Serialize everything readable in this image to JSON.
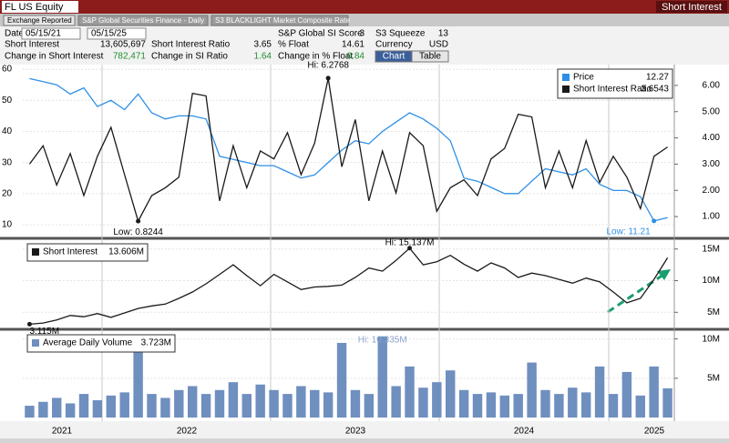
{
  "header": {
    "ticker": "FL US Equity",
    "function": "Short Interest",
    "tabs": [
      "Exchange Reported",
      "S&P Global Securities Finance - Daily",
      "S3 BLACKLIGHT Market Composite Rate"
    ],
    "date_label": "Date",
    "start_date": "05/15/21",
    "end_date": "05/15/25",
    "stats": [
      {
        "label": "S&P Global SI Score",
        "value": "3"
      },
      {
        "label": "S3 Squeeze",
        "value": "13"
      },
      {
        "label": "Short Interest",
        "value": "13,605,697"
      },
      {
        "label": "Short Interest Ratio",
        "value": "3.65"
      },
      {
        "label": "% Float",
        "value": "14.61"
      },
      {
        "label": "Currency",
        "value": "USD"
      },
      {
        "label": "Change in Short Interest",
        "value": "782,471"
      },
      {
        "label": "Change in SI Ratio",
        "value": "1.64"
      },
      {
        "label": "Change in % Float",
        "value": "0.84"
      }
    ],
    "buttons": [
      "Chart",
      "Table"
    ]
  },
  "x_axis": {
    "labels": [
      "2021",
      "2022",
      "2023",
      "2024",
      "2025"
    ]
  },
  "chart_data": [
    {
      "type": "line",
      "categories": [
        null,
        null,
        null,
        null,
        null,
        null,
        null,
        null,
        null,
        null,
        null,
        null,
        null,
        null,
        null,
        null,
        null,
        null,
        null,
        null,
        null,
        null,
        null,
        null,
        null,
        null,
        null,
        null,
        null,
        null,
        null,
        null,
        null,
        null,
        null,
        null,
        null,
        null,
        null,
        null,
        null,
        null,
        null,
        null,
        null,
        null,
        null,
        null
      ],
      "series": [
        {
          "name": "Price",
          "legend_value": "12.27",
          "color": "#2e8fe6",
          "axis": "y",
          "values": [
            57,
            56,
            55,
            52,
            54,
            48,
            50,
            47,
            52,
            46,
            44,
            45,
            45,
            44,
            32,
            31,
            30,
            29,
            29,
            27,
            25,
            26,
            30,
            34,
            37,
            36,
            40,
            43,
            46,
            44,
            41,
            37,
            25,
            24,
            22,
            20,
            20,
            24,
            28,
            27,
            26,
            28,
            23,
            21,
            21,
            19,
            11.21,
            12.27
          ]
        },
        {
          "name": "Short Interest Ratio",
          "legend_value": "3.6543",
          "color": "#1a1a1a",
          "axis": "y2",
          "values": [
            3.0,
            3.7,
            2.2,
            3.4,
            1.8,
            3.3,
            4.4,
            2.6,
            0.8244,
            1.8,
            2.1,
            2.5,
            5.7,
            5.6,
            1.6,
            3.7,
            2.1,
            3.5,
            3.2,
            4.2,
            2.6,
            3.8,
            6.2768,
            2.9,
            4.7,
            1.6,
            3.5,
            1.9,
            4.2,
            3.7,
            1.2,
            2.1,
            2.4,
            1.8,
            3.2,
            3.6,
            4.9,
            4.8,
            2.1,
            3.5,
            2.1,
            3.9,
            2.3,
            3.3,
            2.5,
            1.3,
            3.3,
            3.6543
          ]
        }
      ],
      "ylim": [
        6.2,
        61.2
      ],
      "yticks": [
        10,
        20,
        30,
        40,
        50,
        60
      ],
      "y2lim": [
        0.24,
        6.76
      ],
      "y2ticks": [
        {
          "value": 1,
          "label": "1.00"
        },
        {
          "value": 2,
          "label": "2.00"
        },
        {
          "value": 3,
          "label": "3.00"
        },
        {
          "value": 4,
          "label": "4.00"
        },
        {
          "value": 5,
          "label": "5.00"
        },
        {
          "value": 6,
          "label": "6.00"
        }
      ],
      "annotations": [
        "Hi: 6.2768",
        "Low: 0.8244",
        "Low: 11.21"
      ],
      "grid": true
    },
    {
      "type": "line",
      "categories": [
        null,
        null,
        null,
        null,
        null,
        null,
        null,
        null,
        null,
        null,
        null,
        null,
        null,
        null,
        null,
        null,
        null,
        null,
        null,
        null,
        null,
        null,
        null,
        null,
        null,
        null,
        null,
        null,
        null,
        null,
        null,
        null,
        null,
        null,
        null,
        null,
        null,
        null,
        null,
        null,
        null,
        null,
        null,
        null,
        null,
        null,
        null,
        null
      ],
      "series": [
        {
          "name": "Short Interest",
          "legend_value": "13.606M",
          "color": "#1a1a1a",
          "axis": "y2",
          "values": [
            3115000,
            3300000,
            3800000,
            4500000,
            4300000,
            4800000,
            4200000,
            4900000,
            5600000,
            6000000,
            6300000,
            7200000,
            8200000,
            9500000,
            11000000,
            12500000,
            10800000,
            9200000,
            11000000,
            9800000,
            8600000,
            9000000,
            9100000,
            9300000,
            10500000,
            12000000,
            11500000,
            13200000,
            15137000,
            12500000,
            13000000,
            14000000,
            12600000,
            11500000,
            12800000,
            12000000,
            10500000,
            11200000,
            10800000,
            10200000,
            9600000,
            10400000,
            9800000,
            8200000,
            6500000,
            7200000,
            10200000,
            13605697
          ]
        }
      ],
      "y2lim": [
        2600000,
        16400000
      ],
      "y2ticks": [
        {
          "value": 5000000,
          "label": "5M"
        },
        {
          "value": 10000000,
          "label": "10M"
        },
        {
          "value": 15000000,
          "label": "15M"
        }
      ],
      "annotations": [
        "Hi: 15.137M",
        "3.115M"
      ],
      "grid": true
    },
    {
      "type": "bar",
      "categories": [
        null,
        null,
        null,
        null,
        null,
        null,
        null,
        null,
        null,
        null,
        null,
        null,
        null,
        null,
        null,
        null,
        null,
        null,
        null,
        null,
        null,
        null,
        null,
        null,
        null,
        null,
        null,
        null,
        null,
        null,
        null,
        null,
        null,
        null,
        null,
        null,
        null,
        null,
        null,
        null,
        null,
        null,
        null,
        null,
        null,
        null,
        null,
        null
      ],
      "series": [
        {
          "name": "Average Daily Volume",
          "legend_value": "3.723M",
          "color": "#6f8fbf",
          "axis": "y2",
          "values": [
            1500000,
            2000000,
            2500000,
            1800000,
            3000000,
            2200000,
            2800000,
            3200000,
            9500000,
            3000000,
            2500000,
            3500000,
            4000000,
            3000000,
            3500000,
            4500000,
            3000000,
            4200000,
            3500000,
            3000000,
            4000000,
            3500000,
            3200000,
            9500000,
            3500000,
            3000000,
            10335000,
            4000000,
            6500000,
            3800000,
            4500000,
            6000000,
            3500000,
            3000000,
            3200000,
            2800000,
            3000000,
            7000000,
            3500000,
            3000000,
            3800000,
            3200000,
            6500000,
            3000000,
            5800000,
            2800000,
            6500000,
            3723000
          ]
        }
      ],
      "y2lim": [
        0,
        11000000
      ],
      "y2ticks": [
        {
          "value": 5000000,
          "label": "5M"
        },
        {
          "value": 10000000,
          "label": "10M"
        }
      ],
      "annotations": [
        "Hi: 10.335M"
      ],
      "grid": true
    }
  ]
}
